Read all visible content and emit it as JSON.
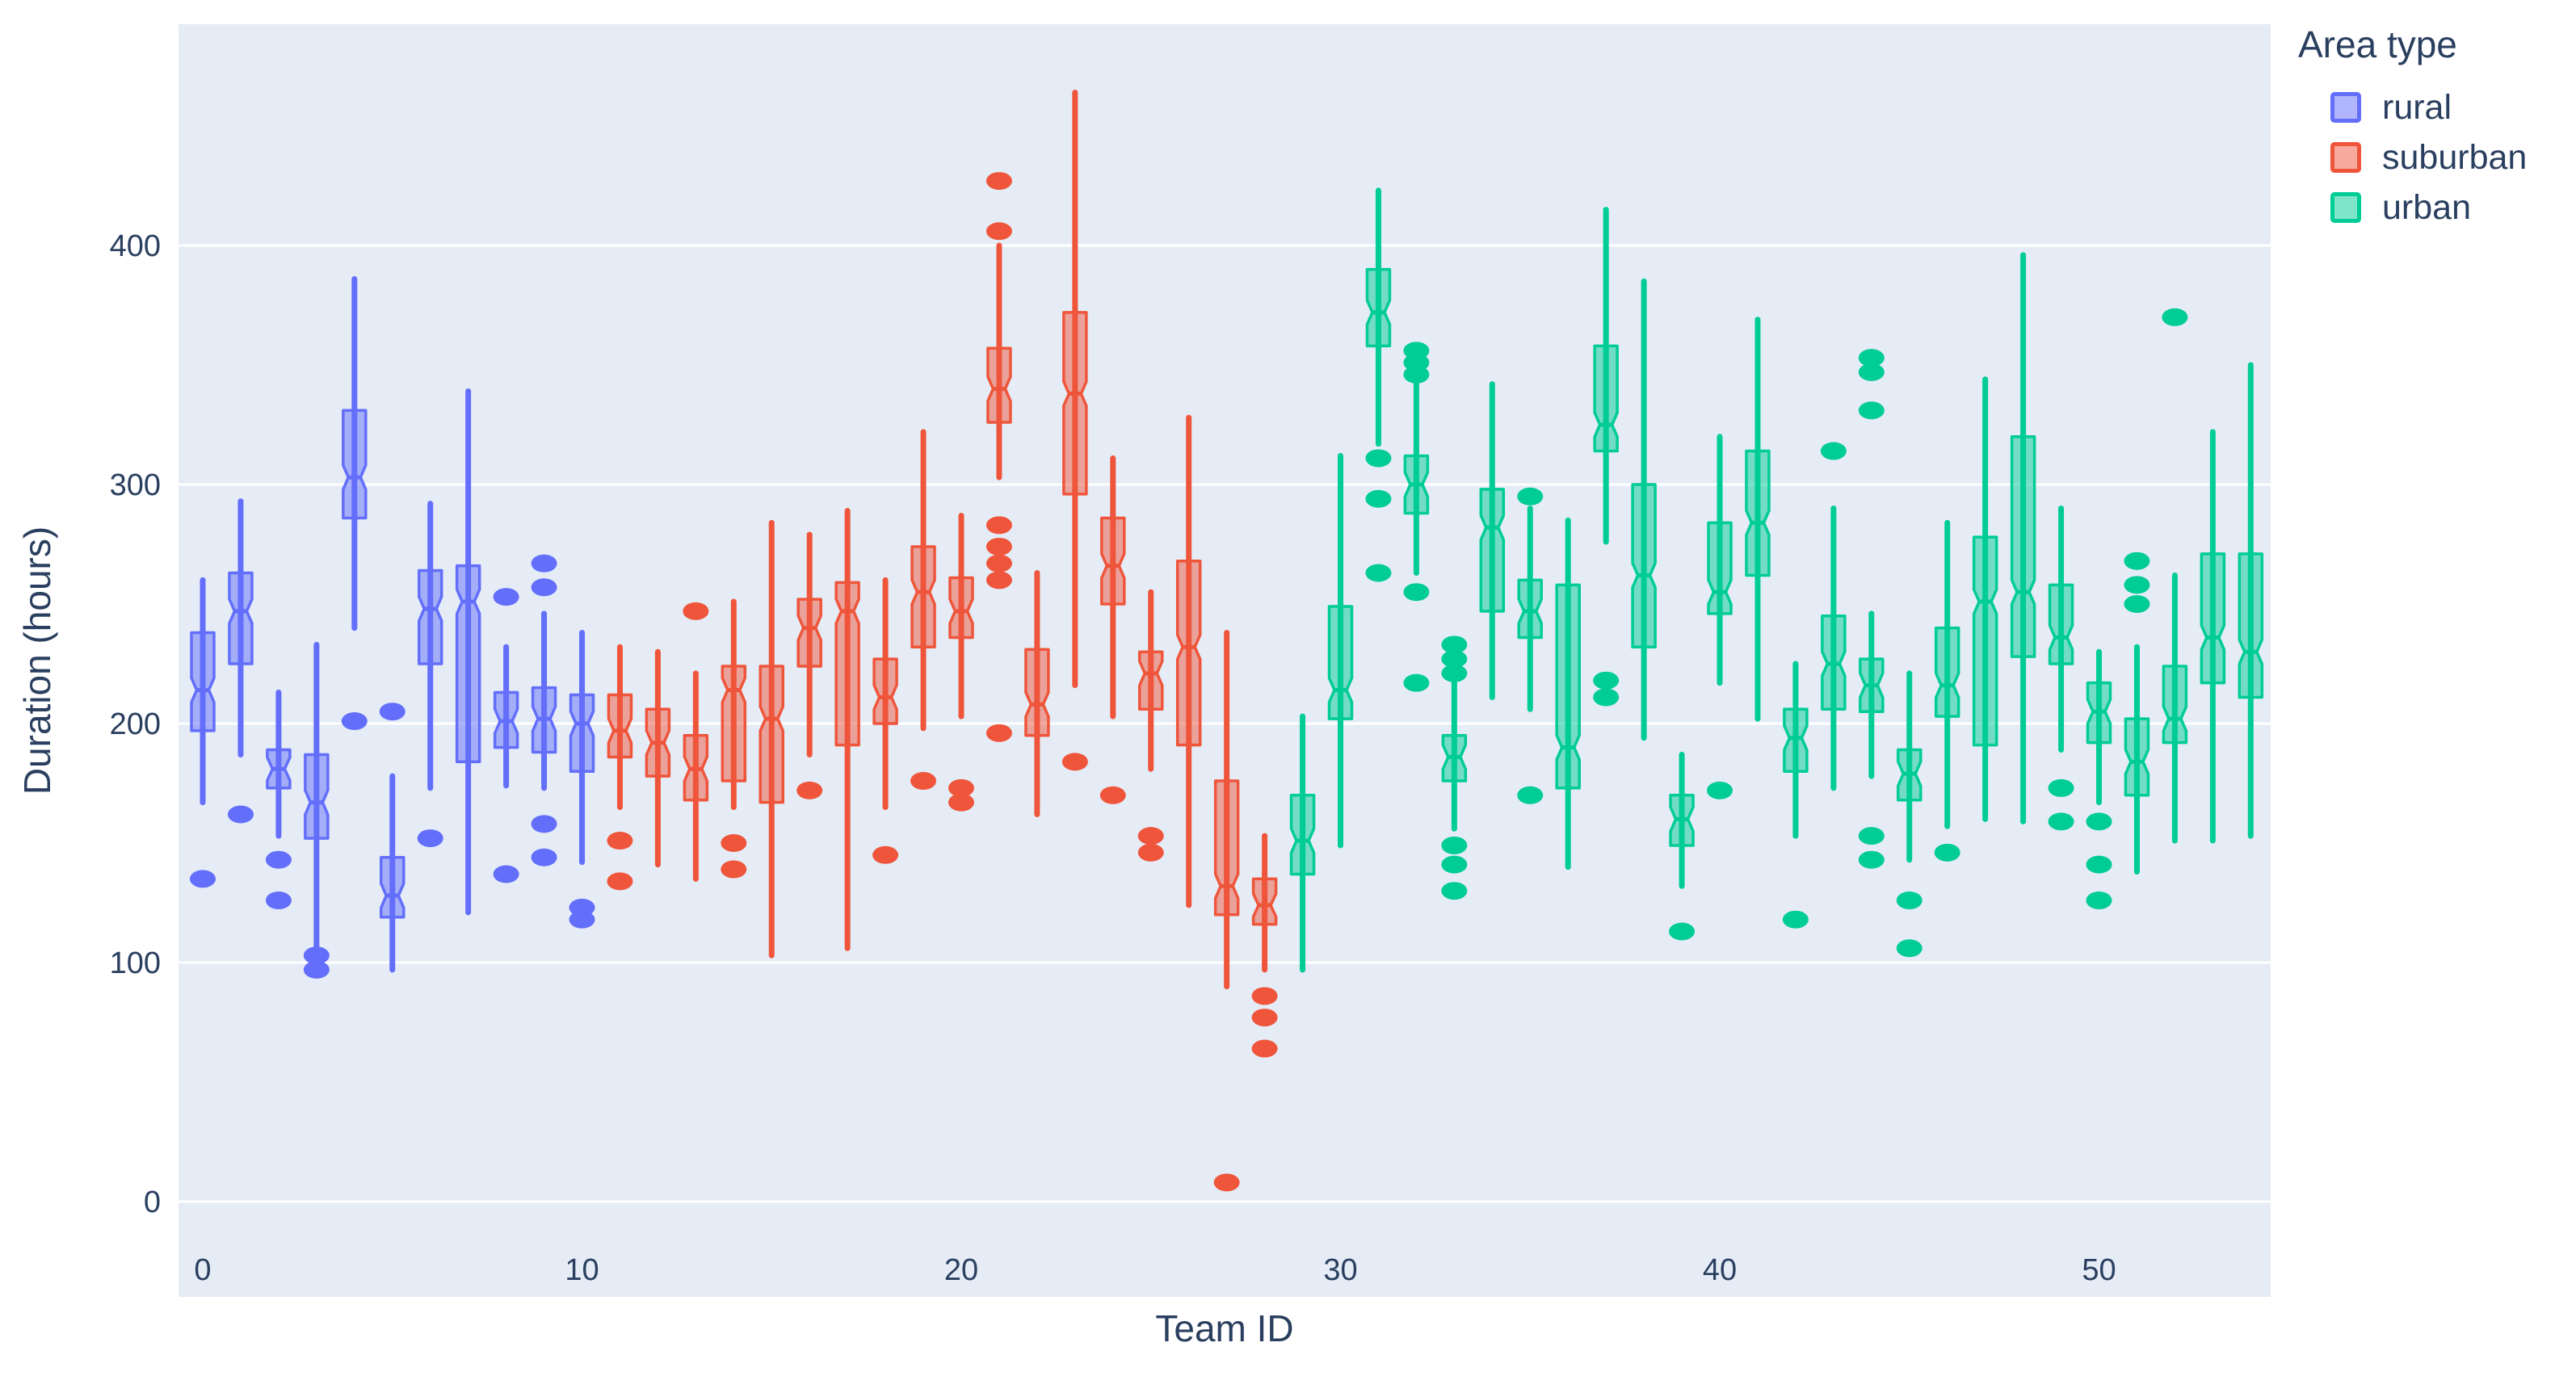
{
  "legend": {
    "title": "Area type",
    "items": [
      {
        "label": "rural",
        "color": "#636EFA"
      },
      {
        "label": "suburban",
        "color": "#EF553B"
      },
      {
        "label": "urban",
        "color": "#00CC96"
      }
    ]
  },
  "colors": {
    "plot_background": "#E5ECF6",
    "gridline": "#FFFFFF",
    "text": "#2a3f5f"
  },
  "chart_data": {
    "type": "box",
    "title": "",
    "xlabel": "Team ID",
    "ylabel": "Duration (hours)",
    "x_ticks": [
      0,
      10,
      20,
      30,
      40,
      50
    ],
    "y_ticks": [
      0,
      100,
      200,
      300,
      400
    ],
    "xlim": [
      -0.7,
      54.6
    ],
    "ylim": [
      -40,
      493
    ],
    "grid": true,
    "legend_position": "top-right",
    "series": [
      {
        "name": "rural",
        "color": "#636EFA",
        "teams": [
          {
            "id": 0,
            "low": 167,
            "q1": 197,
            "median": 214,
            "q3": 238,
            "high": 260,
            "outliers": [
              135
            ]
          },
          {
            "id": 1,
            "low": 187,
            "q1": 225,
            "median": 247,
            "q3": 263,
            "high": 293,
            "outliers": [
              162
            ]
          },
          {
            "id": 2,
            "low": 153,
            "q1": 173,
            "median": 181,
            "q3": 189,
            "high": 213,
            "outliers": [
              143,
              126
            ]
          },
          {
            "id": 3,
            "low": 105,
            "q1": 152,
            "median": 167,
            "q3": 187,
            "high": 233,
            "outliers": [
              103,
              97
            ]
          },
          {
            "id": 4,
            "low": 240,
            "q1": 286,
            "median": 303,
            "q3": 331,
            "high": 386,
            "outliers": [
              201
            ]
          },
          {
            "id": 5,
            "low": 97,
            "q1": 119,
            "median": 128,
            "q3": 144,
            "high": 178,
            "outliers": [
              205
            ]
          },
          {
            "id": 6,
            "low": 173,
            "q1": 225,
            "median": 248,
            "q3": 264,
            "high": 292,
            "outliers": [
              152
            ]
          },
          {
            "id": 7,
            "low": 121,
            "q1": 184,
            "median": 251,
            "q3": 266,
            "high": 339,
            "outliers": []
          },
          {
            "id": 8,
            "low": 174,
            "q1": 190,
            "median": 201,
            "q3": 213,
            "high": 232,
            "outliers": [
              253,
              137
            ]
          },
          {
            "id": 9,
            "low": 173,
            "q1": 188,
            "median": 202,
            "q3": 215,
            "high": 246,
            "outliers": [
              267,
              257,
              158,
              144
            ]
          },
          {
            "id": 10,
            "low": 142,
            "q1": 180,
            "median": 200,
            "q3": 212,
            "high": 238,
            "outliers": [
              123,
              118
            ]
          }
        ]
      },
      {
        "name": "suburban",
        "color": "#EF553B",
        "teams": [
          {
            "id": 11,
            "low": 165,
            "q1": 186,
            "median": 197,
            "q3": 212,
            "high": 232,
            "outliers": [
              151,
              134
            ]
          },
          {
            "id": 12,
            "low": 141,
            "q1": 178,
            "median": 192,
            "q3": 206,
            "high": 230,
            "outliers": []
          },
          {
            "id": 13,
            "low": 135,
            "q1": 168,
            "median": 181,
            "q3": 195,
            "high": 221,
            "outliers": [
              247
            ]
          },
          {
            "id": 14,
            "low": 165,
            "q1": 176,
            "median": 214,
            "q3": 224,
            "high": 251,
            "outliers": [
              150,
              139
            ]
          },
          {
            "id": 15,
            "low": 103,
            "q1": 167,
            "median": 202,
            "q3": 224,
            "high": 284,
            "outliers": []
          },
          {
            "id": 16,
            "low": 187,
            "q1": 224,
            "median": 240,
            "q3": 252,
            "high": 279,
            "outliers": [
              172
            ]
          },
          {
            "id": 17,
            "low": 106,
            "q1": 191,
            "median": 247,
            "q3": 259,
            "high": 289,
            "outliers": []
          },
          {
            "id": 18,
            "low": 165,
            "q1": 200,
            "median": 211,
            "q3": 227,
            "high": 260,
            "outliers": [
              145
            ]
          },
          {
            "id": 19,
            "low": 198,
            "q1": 232,
            "median": 255,
            "q3": 274,
            "high": 322,
            "outliers": [
              176
            ]
          },
          {
            "id": 20,
            "low": 203,
            "q1": 236,
            "median": 247,
            "q3": 261,
            "high": 287,
            "outliers": [
              173,
              167
            ]
          },
          {
            "id": 21,
            "low": 303,
            "q1": 326,
            "median": 340,
            "q3": 357,
            "high": 400,
            "outliers": [
              427,
              406,
              283,
              274,
              267,
              260,
              196
            ]
          },
          {
            "id": 22,
            "low": 162,
            "q1": 195,
            "median": 208,
            "q3": 231,
            "high": 263,
            "outliers": []
          },
          {
            "id": 23,
            "low": 216,
            "q1": 296,
            "median": 338,
            "q3": 372,
            "high": 464,
            "outliers": [
              184
            ]
          },
          {
            "id": 24,
            "low": 203,
            "q1": 250,
            "median": 266,
            "q3": 286,
            "high": 311,
            "outliers": [
              170
            ]
          },
          {
            "id": 25,
            "low": 181,
            "q1": 206,
            "median": 221,
            "q3": 230,
            "high": 255,
            "outliers": [
              153,
              146
            ]
          },
          {
            "id": 26,
            "low": 124,
            "q1": 191,
            "median": 232,
            "q3": 268,
            "high": 328,
            "outliers": []
          },
          {
            "id": 27,
            "low": 90,
            "q1": 120,
            "median": 132,
            "q3": 176,
            "high": 238,
            "outliers": [
              8
            ]
          },
          {
            "id": 28,
            "low": 97,
            "q1": 116,
            "median": 124,
            "q3": 135,
            "high": 153,
            "outliers": [
              86,
              77,
              64
            ]
          }
        ]
      },
      {
        "name": "urban",
        "color": "#00CC96",
        "teams": [
          {
            "id": 29,
            "low": 97,
            "q1": 137,
            "median": 151,
            "q3": 170,
            "high": 203,
            "outliers": []
          },
          {
            "id": 30,
            "low": 149,
            "q1": 202,
            "median": 214,
            "q3": 249,
            "high": 312,
            "outliers": []
          },
          {
            "id": 31,
            "low": 317,
            "q1": 358,
            "median": 372,
            "q3": 390,
            "high": 423,
            "outliers": [
              311,
              294,
              263
            ]
          },
          {
            "id": 32,
            "low": 263,
            "q1": 288,
            "median": 300,
            "q3": 312,
            "high": 344,
            "outliers": [
              356,
              351,
              346,
              255,
              217
            ]
          },
          {
            "id": 33,
            "low": 156,
            "q1": 176,
            "median": 186,
            "q3": 195,
            "high": 220,
            "outliers": [
              233,
              227,
              221,
              149,
              141,
              130
            ]
          },
          {
            "id": 34,
            "low": 211,
            "q1": 247,
            "median": 282,
            "q3": 298,
            "high": 342,
            "outliers": []
          },
          {
            "id": 35,
            "low": 206,
            "q1": 236,
            "median": 247,
            "q3": 260,
            "high": 290,
            "outliers": [
              295,
              170
            ]
          },
          {
            "id": 36,
            "low": 140,
            "q1": 173,
            "median": 190,
            "q3": 258,
            "high": 285,
            "outliers": []
          },
          {
            "id": 37,
            "low": 276,
            "q1": 314,
            "median": 325,
            "q3": 358,
            "high": 415,
            "outliers": [
              218,
              211
            ]
          },
          {
            "id": 38,
            "low": 194,
            "q1": 232,
            "median": 262,
            "q3": 300,
            "high": 385,
            "outliers": []
          },
          {
            "id": 39,
            "low": 132,
            "q1": 149,
            "median": 160,
            "q3": 170,
            "high": 187,
            "outliers": [
              113
            ]
          },
          {
            "id": 40,
            "low": 217,
            "q1": 246,
            "median": 255,
            "q3": 284,
            "high": 320,
            "outliers": [
              172
            ]
          },
          {
            "id": 41,
            "low": 202,
            "q1": 262,
            "median": 284,
            "q3": 314,
            "high": 369,
            "outliers": []
          },
          {
            "id": 42,
            "low": 153,
            "q1": 180,
            "median": 194,
            "q3": 206,
            "high": 225,
            "outliers": [
              118
            ]
          },
          {
            "id": 43,
            "low": 173,
            "q1": 206,
            "median": 225,
            "q3": 245,
            "high": 290,
            "outliers": [
              314
            ]
          },
          {
            "id": 44,
            "low": 178,
            "q1": 205,
            "median": 216,
            "q3": 227,
            "high": 246,
            "outliers": [
              353,
              347,
              331,
              153,
              143
            ]
          },
          {
            "id": 45,
            "low": 143,
            "q1": 168,
            "median": 179,
            "q3": 189,
            "high": 221,
            "outliers": [
              126,
              106
            ]
          },
          {
            "id": 46,
            "low": 157,
            "q1": 203,
            "median": 216,
            "q3": 240,
            "high": 284,
            "outliers": [
              146
            ]
          },
          {
            "id": 47,
            "low": 160,
            "q1": 191,
            "median": 251,
            "q3": 278,
            "high": 344,
            "outliers": []
          },
          {
            "id": 48,
            "low": 159,
            "q1": 228,
            "median": 255,
            "q3": 320,
            "high": 396,
            "outliers": []
          },
          {
            "id": 49,
            "low": 189,
            "q1": 225,
            "median": 236,
            "q3": 258,
            "high": 290,
            "outliers": [
              173,
              159
            ]
          },
          {
            "id": 50,
            "low": 167,
            "q1": 192,
            "median": 205,
            "q3": 217,
            "high": 230,
            "outliers": [
              159,
              141,
              126
            ]
          },
          {
            "id": 51,
            "low": 138,
            "q1": 170,
            "median": 184,
            "q3": 202,
            "high": 232,
            "outliers": [
              268,
              258,
              250
            ]
          },
          {
            "id": 52,
            "low": 151,
            "q1": 192,
            "median": 202,
            "q3": 224,
            "high": 262,
            "outliers": [
              370
            ]
          },
          {
            "id": 53,
            "low": 151,
            "q1": 217,
            "median": 236,
            "q3": 271,
            "high": 322,
            "outliers": []
          },
          {
            "id": 54,
            "low": 153,
            "q1": 211,
            "median": 230,
            "q3": 271,
            "high": 350,
            "outliers": []
          }
        ]
      }
    ]
  }
}
